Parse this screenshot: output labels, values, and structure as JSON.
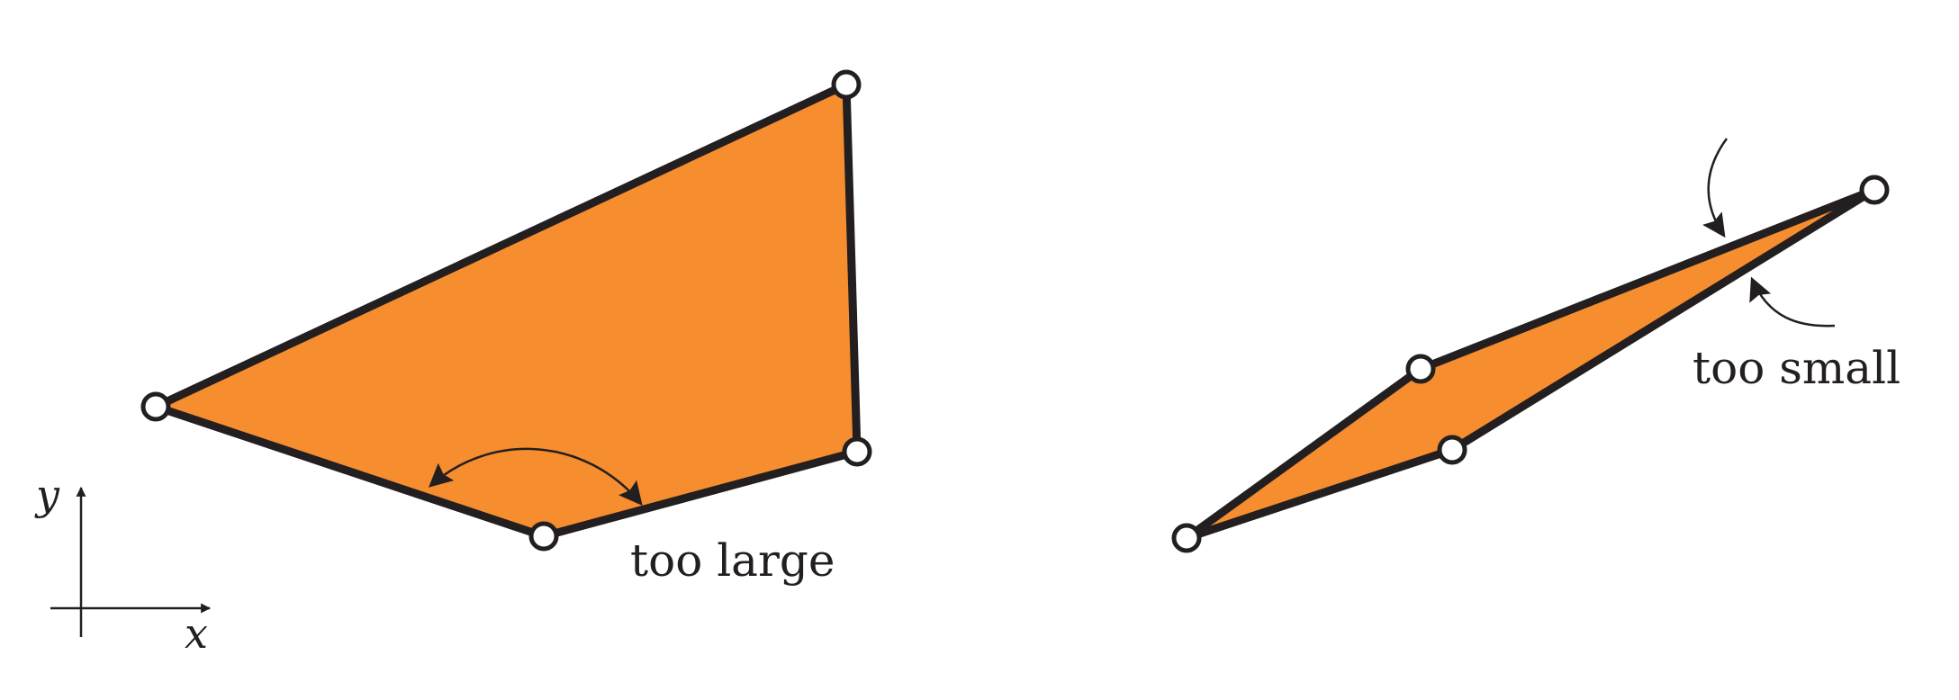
{
  "colors": {
    "fill": "#f68d2e",
    "stroke": "#231f20",
    "node_fill": "#ffffff"
  },
  "labels": {
    "too_large": "too large",
    "too_small": "too small"
  },
  "axes": {
    "x": "x",
    "y": "y"
  }
}
